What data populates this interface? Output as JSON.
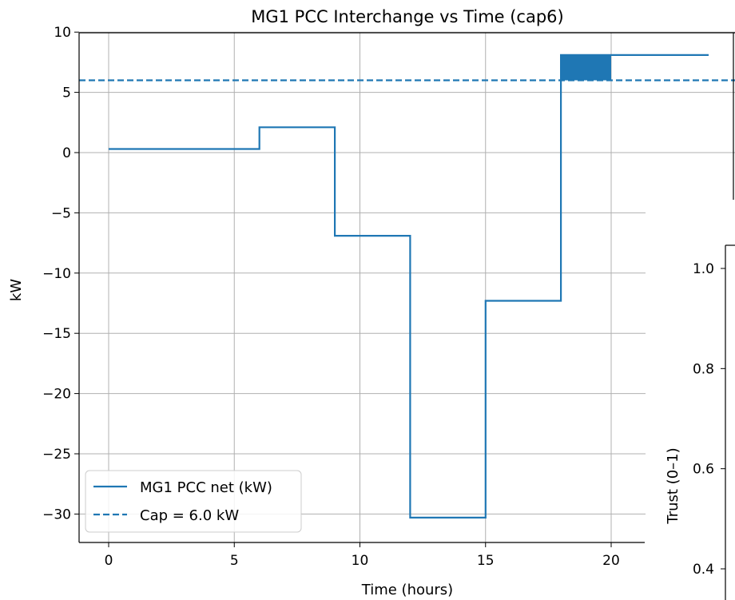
{
  "chart_data": [
    {
      "type": "line",
      "title": "MG1 PCC Interchange vs Time (cap6)",
      "xlabel": "Time (hours)",
      "ylabel": "kW",
      "xlim": [
        -1.1,
        21.9
      ],
      "ylim": [
        -32.3,
        10.0
      ],
      "xticks": [
        0,
        5,
        10,
        15,
        20
      ],
      "xtick_labels": [
        "0",
        "5",
        "10",
        "15",
        "20"
      ],
      "yticks": [
        10,
        5,
        0,
        -5,
        -10,
        -15,
        -20,
        -25,
        -30
      ],
      "ytick_labels": [
        "10",
        "5",
        "0",
        "−5",
        "−10",
        "−15",
        "−20",
        "−25",
        "−30"
      ],
      "grid": true,
      "legend_position": "lower-left",
      "series": [
        {
          "name": "MG1 PCC net (kW)",
          "style": "step",
          "color": "#1f77b4",
          "x": [
            0,
            6,
            6,
            9,
            9,
            12,
            12,
            15,
            15,
            18,
            18,
            24
          ],
          "y": [
            0.3,
            0.3,
            2.1,
            2.1,
            -6.9,
            -6.9,
            -30.3,
            -30.3,
            -12.3,
            -12.3,
            8.1,
            8.1
          ]
        },
        {
          "name": "Cap = 6.0 kW",
          "style": "dashed",
          "color": "#1f77b4",
          "value": 6.0
        }
      ],
      "shaded_region": {
        "x": [
          18,
          20
        ],
        "y_from": 6.0,
        "y_to": 8.1,
        "color": "#1f77b4"
      }
    },
    {
      "type": "line",
      "title": "",
      "ylabel": "Trust (0–1)",
      "yticks": [
        1.0,
        0.8,
        0.6,
        0.4
      ],
      "ytick_labels": [
        "1.0",
        "0.8",
        "0.6",
        "0.4"
      ],
      "ylim": [
        0.37,
        1.05
      ]
    }
  ]
}
